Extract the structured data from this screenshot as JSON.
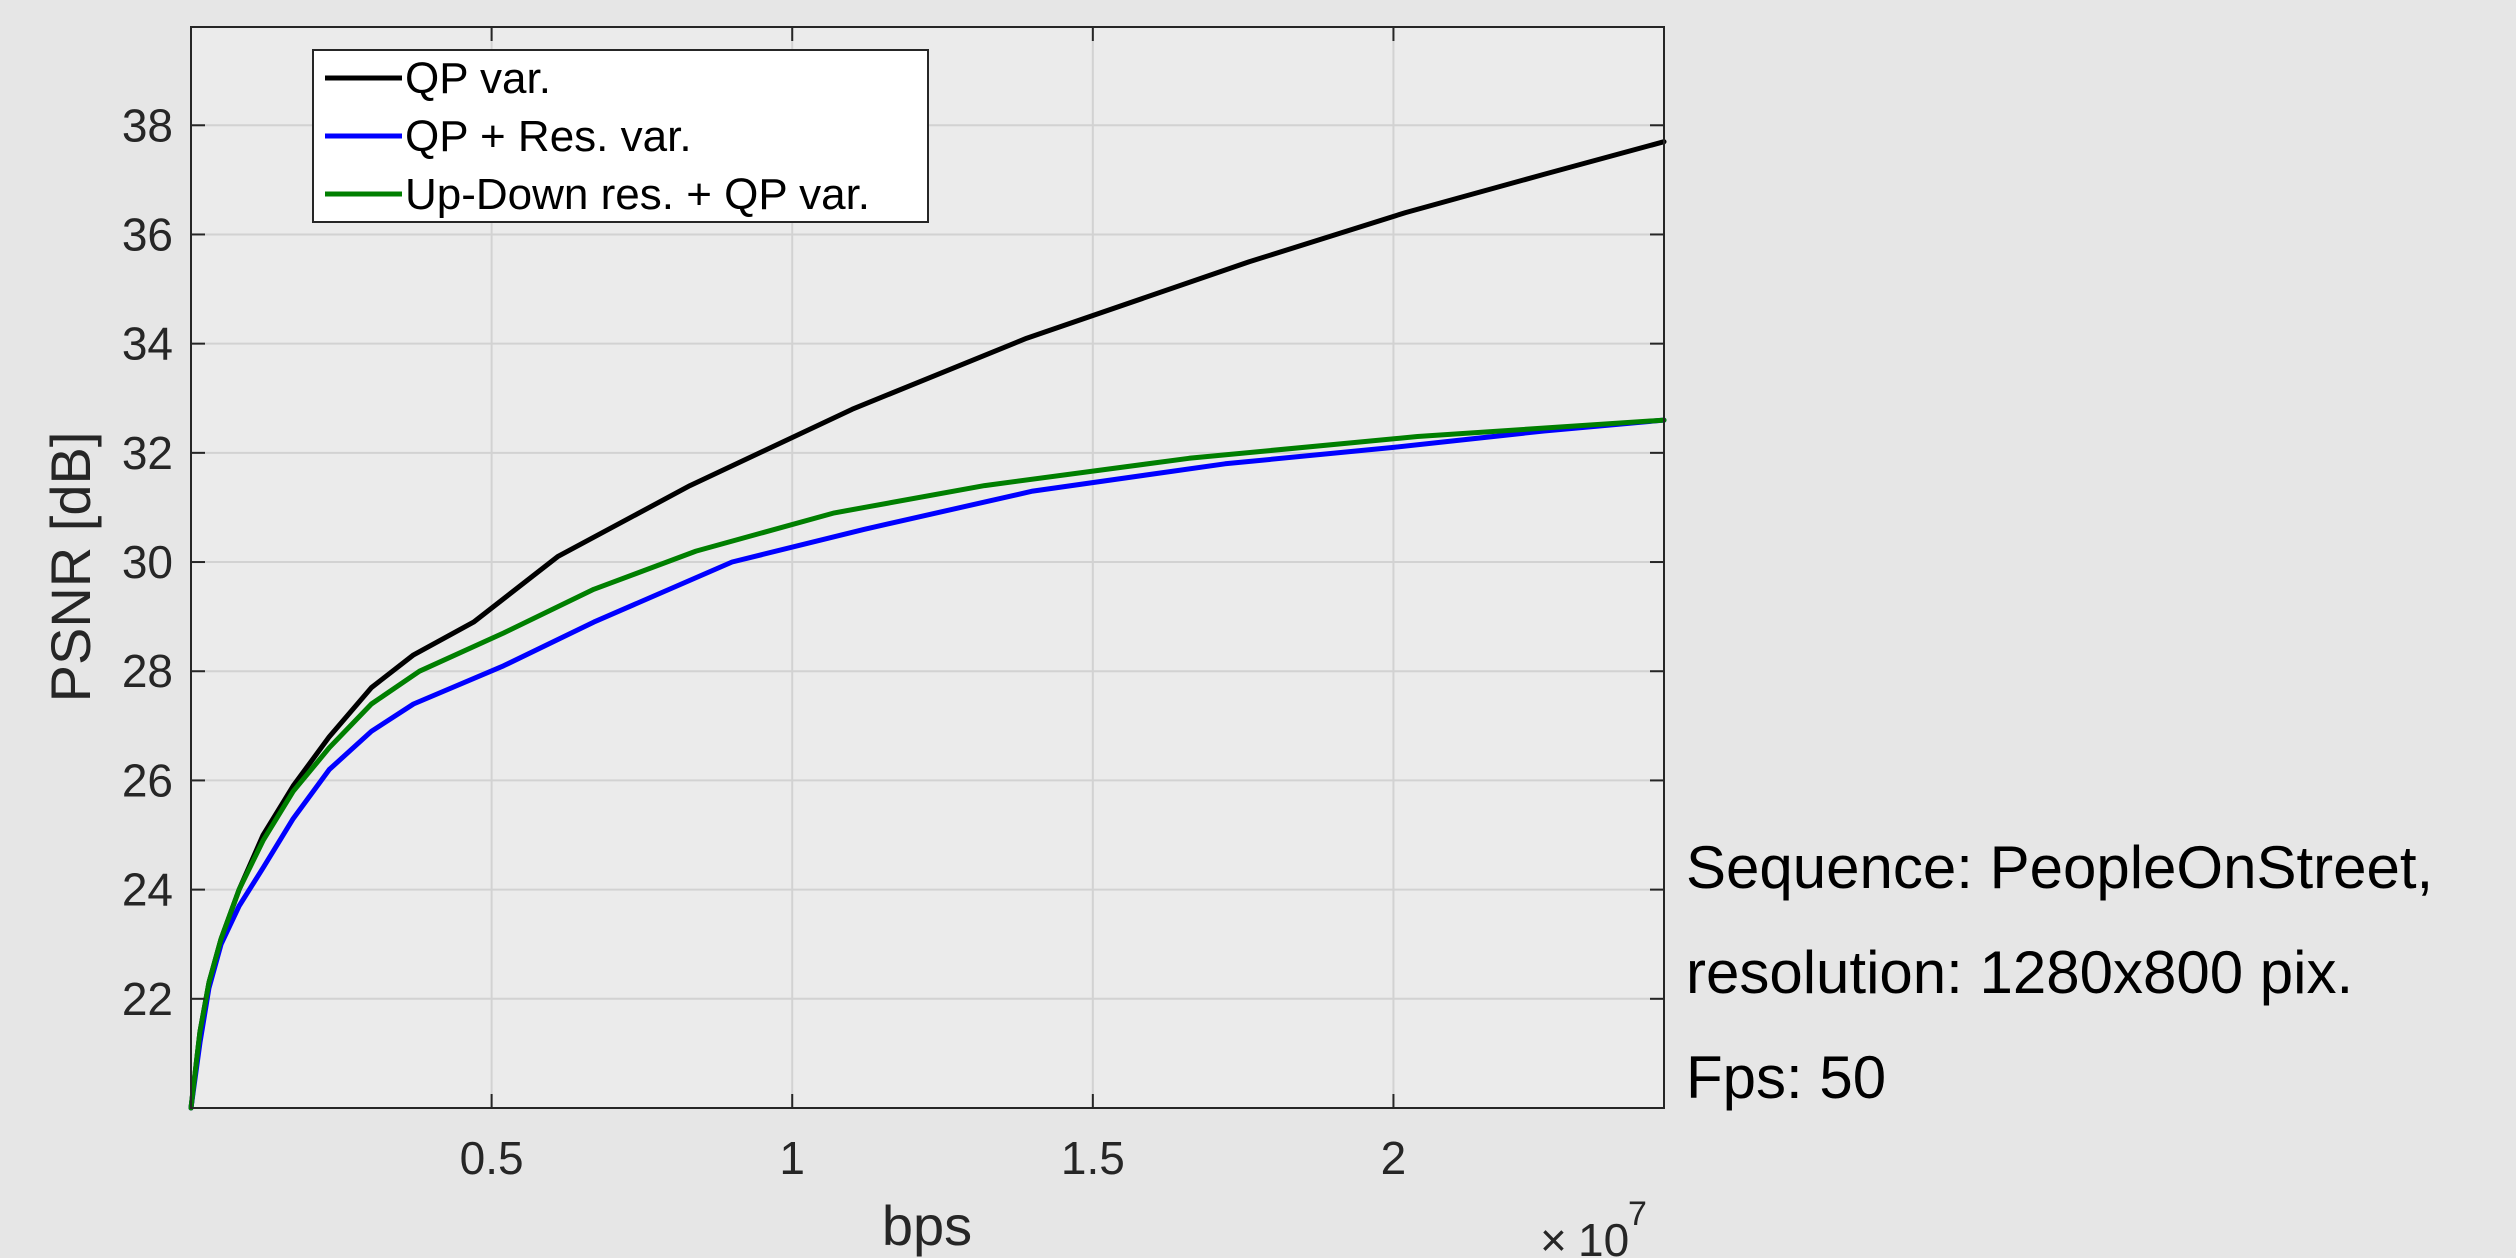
{
  "chart_data": {
    "type": "line",
    "xlabel": "bps",
    "ylabel": "PSNR [dB]",
    "x_exponent_base": "10",
    "x_exponent_power": "7",
    "xlim": [
      0,
      24500000
    ],
    "ylim": [
      20,
      39.8
    ],
    "xticks": [
      5000000,
      10000000,
      15000000,
      20000000
    ],
    "xtick_labels": [
      "0.5",
      "1",
      "1.5",
      "2"
    ],
    "yticks": [
      22,
      24,
      26,
      28,
      30,
      32,
      34,
      36,
      38
    ],
    "ytick_labels": [
      "22",
      "24",
      "26",
      "28",
      "30",
      "32",
      "34",
      "36",
      "38"
    ],
    "grid": true,
    "legend_position": "top-left",
    "series": [
      {
        "name": "QP var.",
        "color": "#000000",
        "x": [
          0,
          150000,
          300000,
          500000,
          800000,
          1200000,
          1700000,
          2300000,
          3000000,
          3700000,
          4700000,
          6100000,
          8300000,
          11000000,
          13900000,
          17600000,
          20200000,
          22500000,
          24500000
        ],
        "y": [
          20.0,
          21.4,
          22.3,
          23.1,
          24.0,
          25.0,
          25.9,
          26.8,
          27.7,
          28.3,
          28.9,
          30.1,
          31.4,
          32.8,
          34.1,
          35.5,
          36.4,
          37.1,
          37.7
        ]
      },
      {
        "name": "QP + Res. var.",
        "color": "#0000ff",
        "x": [
          0,
          150000,
          300000,
          500000,
          800000,
          1200000,
          1700000,
          2300000,
          3000000,
          3700000,
          5200000,
          6700000,
          9000000,
          11200000,
          14000000,
          17200000,
          20000000,
          22500000,
          24500000
        ],
        "y": [
          20.0,
          21.2,
          22.2,
          23.0,
          23.7,
          24.4,
          25.3,
          26.2,
          26.9,
          27.4,
          28.1,
          28.9,
          30.0,
          30.6,
          31.3,
          31.8,
          32.1,
          32.4,
          32.6
        ]
      },
      {
        "name": "Up-Down res. + QP var.",
        "color": "#007f00",
        "x": [
          0,
          150000,
          300000,
          500000,
          800000,
          1200000,
          1700000,
          2300000,
          3000000,
          3800000,
          5200000,
          6700000,
          8400000,
          10700000,
          13200000,
          16600000,
          20400000,
          24500000
        ],
        "y": [
          20.0,
          21.4,
          22.3,
          23.1,
          24.0,
          24.9,
          25.8,
          26.6,
          27.4,
          28.0,
          28.7,
          29.5,
          30.2,
          30.9,
          31.4,
          31.9,
          32.3,
          32.6
        ]
      }
    ]
  },
  "annotation": {
    "line1": "Sequence: PeopleOnStreet,",
    "line2": "resolution: 1280x800 pix.",
    "line3": "Fps: 50"
  }
}
